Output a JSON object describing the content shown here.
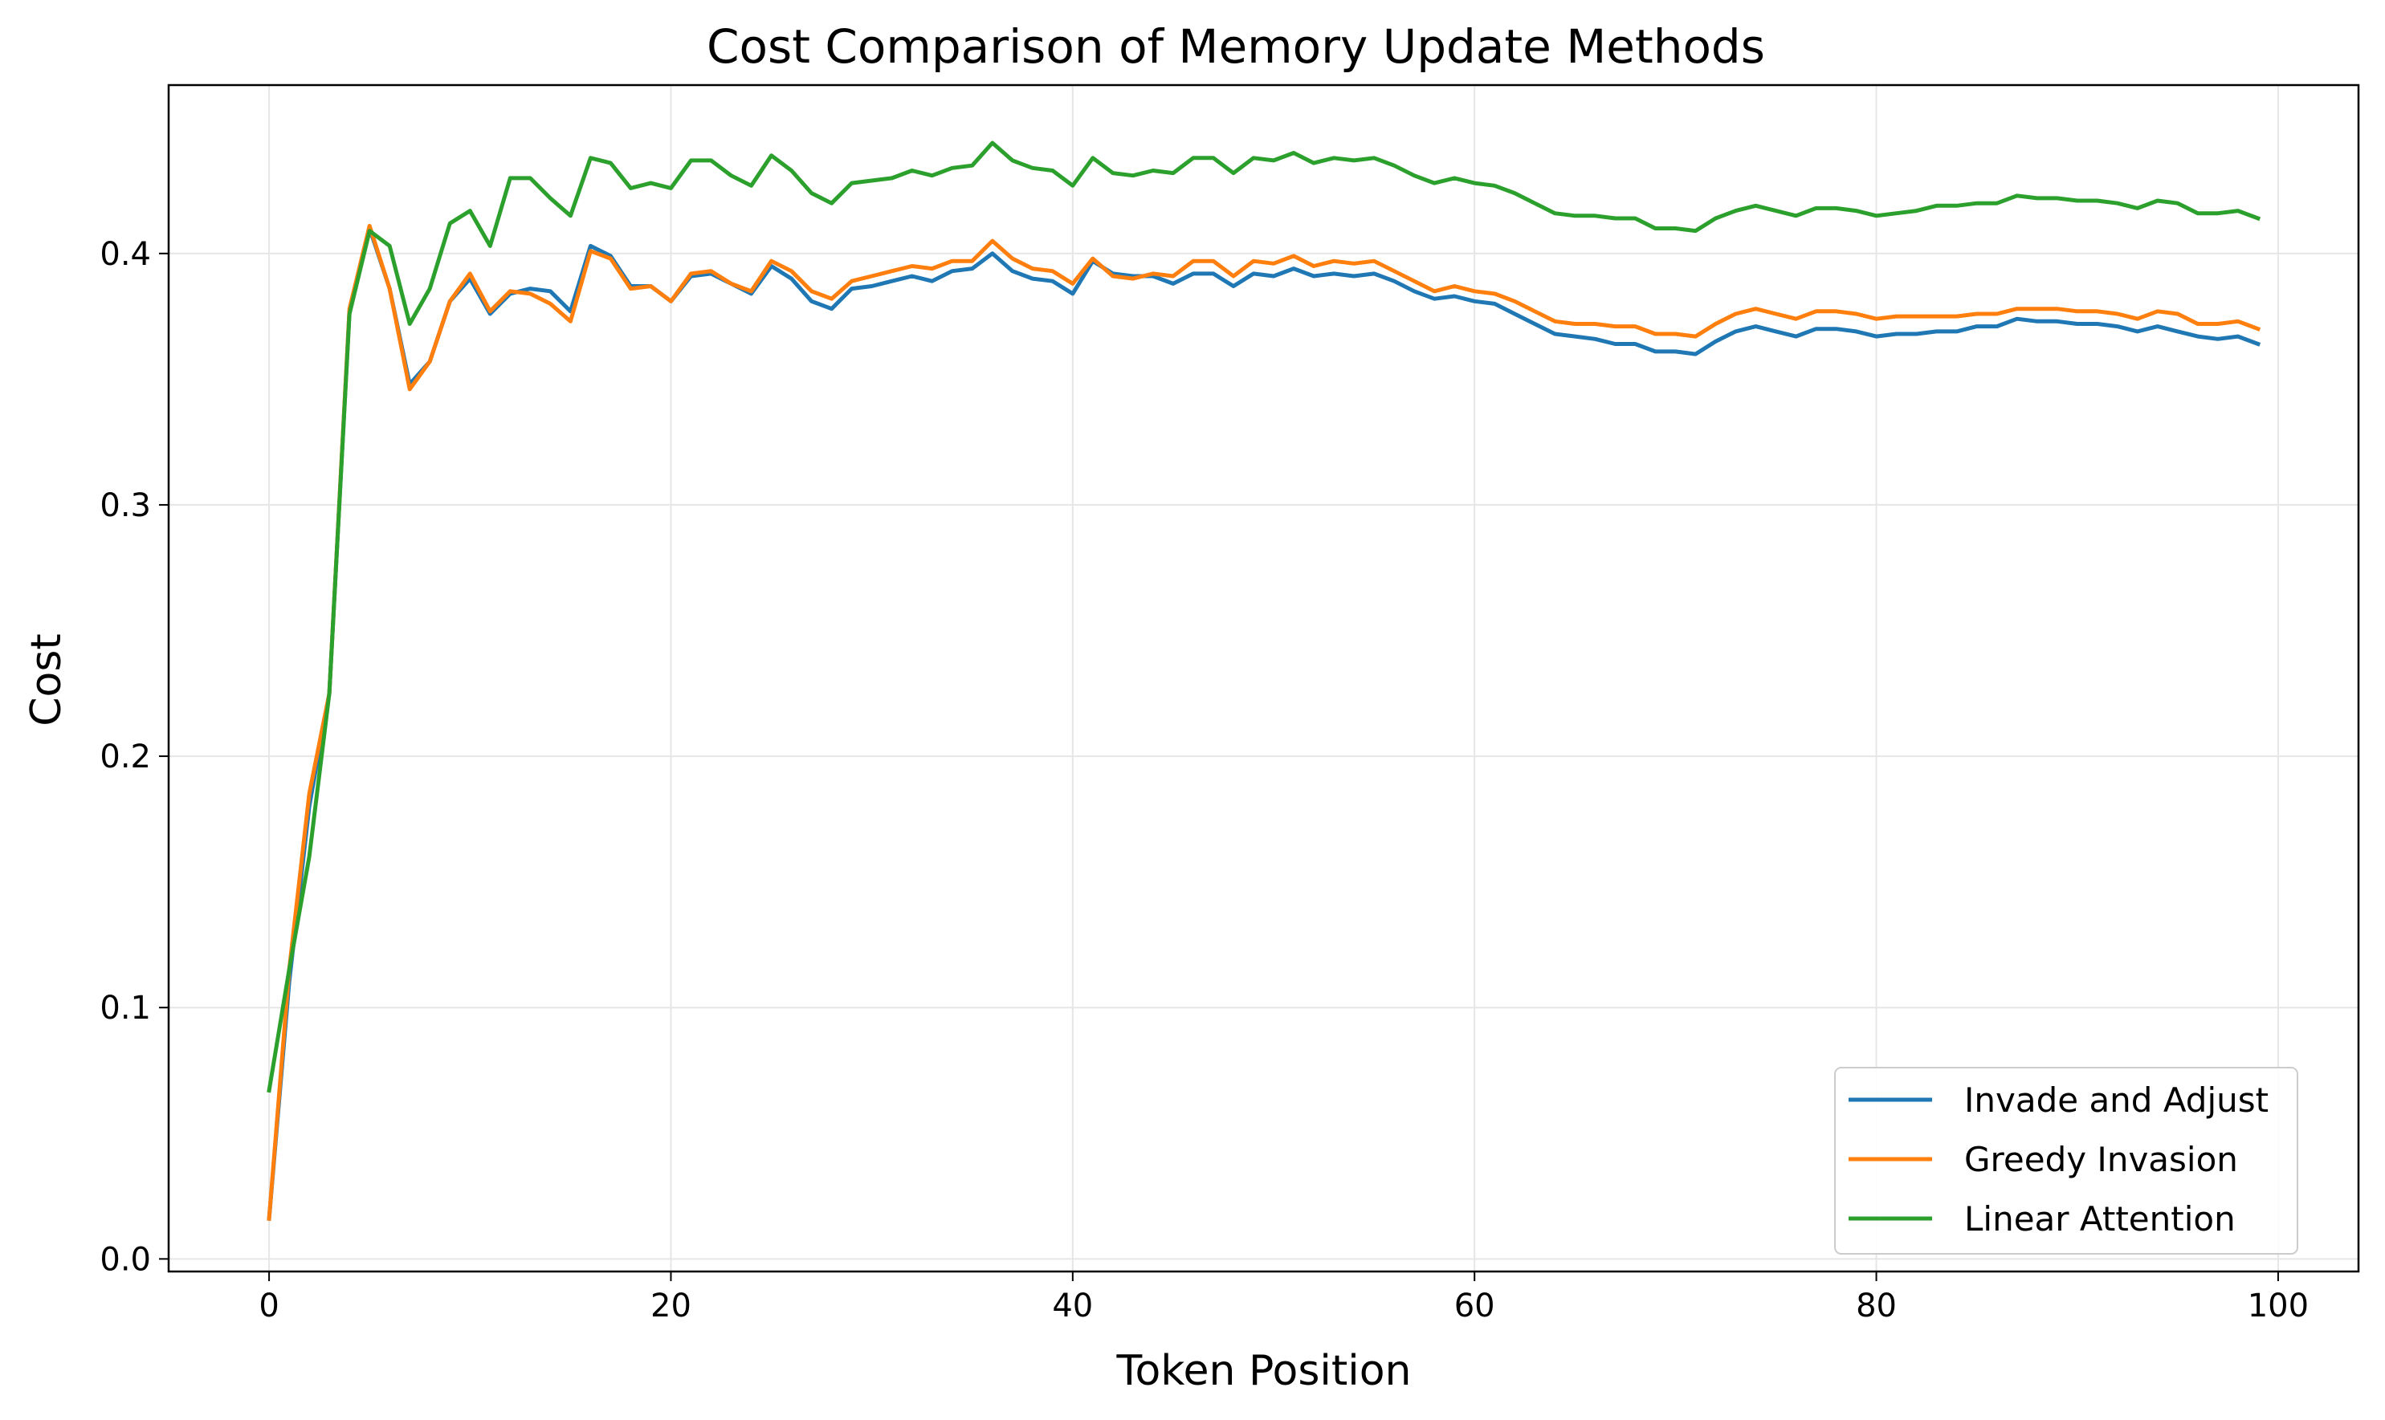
{
  "chart_data": {
    "type": "line",
    "title": "Cost Comparison of Memory Update Methods",
    "xlabel": "Token Position",
    "ylabel": "Cost",
    "xlim": [
      -5,
      104
    ],
    "ylim": [
      -0.005,
      0.467
    ],
    "xticks": [
      0,
      20,
      40,
      60,
      80,
      100
    ],
    "xtick_labels": [
      "0",
      "20",
      "40",
      "60",
      "80",
      "100"
    ],
    "yticks": [
      0.0,
      0.1,
      0.2,
      0.3,
      0.4
    ],
    "ytick_labels": [
      "0.0",
      "0.1",
      "0.2",
      "0.3",
      "0.4"
    ],
    "grid": true,
    "legend_position": "lower-right",
    "x": [
      0,
      1,
      2,
      3,
      4,
      5,
      6,
      7,
      8,
      9,
      10,
      11,
      12,
      13,
      14,
      15,
      16,
      17,
      18,
      19,
      20,
      21,
      22,
      23,
      24,
      25,
      26,
      27,
      28,
      29,
      30,
      31,
      32,
      33,
      34,
      35,
      36,
      37,
      38,
      39,
      40,
      41,
      42,
      43,
      44,
      45,
      46,
      47,
      48,
      49,
      50,
      51,
      52,
      53,
      54,
      55,
      56,
      57,
      58,
      59,
      60,
      61,
      62,
      63,
      64,
      65,
      66,
      67,
      68,
      69,
      70,
      71,
      72,
      73,
      74,
      75,
      76,
      77,
      78,
      79,
      80,
      81,
      82,
      83,
      84,
      85,
      86,
      87,
      88,
      89,
      90,
      91,
      92,
      93,
      94,
      95,
      96,
      97,
      98,
      99
    ],
    "series": [
      {
        "name": "Invade and Adjust",
        "color": "#1f77b4",
        "values": [
          0.016,
          0.11,
          0.18,
          0.225,
          0.377,
          0.41,
          0.386,
          0.348,
          0.357,
          0.381,
          0.39,
          0.376,
          0.384,
          0.386,
          0.385,
          0.377,
          0.403,
          0.399,
          0.387,
          0.387,
          0.381,
          0.391,
          0.392,
          0.388,
          0.384,
          0.395,
          0.39,
          0.381,
          0.378,
          0.386,
          0.387,
          0.389,
          0.391,
          0.389,
          0.393,
          0.394,
          0.4,
          0.393,
          0.39,
          0.389,
          0.384,
          0.397,
          0.392,
          0.391,
          0.391,
          0.388,
          0.392,
          0.392,
          0.387,
          0.392,
          0.391,
          0.394,
          0.391,
          0.392,
          0.391,
          0.392,
          0.389,
          0.385,
          0.382,
          0.383,
          0.381,
          0.38,
          0.376,
          0.372,
          0.368,
          0.367,
          0.366,
          0.364,
          0.364,
          0.361,
          0.361,
          0.36,
          0.365,
          0.369,
          0.371,
          0.369,
          0.367,
          0.37,
          0.37,
          0.369,
          0.367,
          0.368,
          0.368,
          0.369,
          0.369,
          0.371,
          0.371,
          0.374,
          0.373,
          0.373,
          0.372,
          0.372,
          0.371,
          0.369,
          0.371,
          0.369,
          0.367,
          0.366,
          0.367,
          0.364
        ]
      },
      {
        "name": "Greedy Invasion",
        "color": "#ff7f0e",
        "values": [
          0.016,
          0.115,
          0.185,
          0.225,
          0.378,
          0.411,
          0.386,
          0.346,
          0.357,
          0.381,
          0.392,
          0.377,
          0.385,
          0.384,
          0.38,
          0.373,
          0.401,
          0.398,
          0.386,
          0.387,
          0.381,
          0.392,
          0.393,
          0.388,
          0.385,
          0.397,
          0.393,
          0.385,
          0.382,
          0.389,
          0.391,
          0.393,
          0.395,
          0.394,
          0.397,
          0.397,
          0.405,
          0.398,
          0.394,
          0.393,
          0.388,
          0.398,
          0.391,
          0.39,
          0.392,
          0.391,
          0.397,
          0.397,
          0.391,
          0.397,
          0.396,
          0.399,
          0.395,
          0.397,
          0.396,
          0.397,
          0.393,
          0.389,
          0.385,
          0.387,
          0.385,
          0.384,
          0.381,
          0.377,
          0.373,
          0.372,
          0.372,
          0.371,
          0.371,
          0.368,
          0.368,
          0.367,
          0.372,
          0.376,
          0.378,
          0.376,
          0.374,
          0.377,
          0.377,
          0.376,
          0.374,
          0.375,
          0.375,
          0.375,
          0.375,
          0.376,
          0.376,
          0.378,
          0.378,
          0.378,
          0.377,
          0.377,
          0.376,
          0.374,
          0.377,
          0.376,
          0.372,
          0.372,
          0.373,
          0.37
        ]
      },
      {
        "name": "Linear Attention",
        "color": "#2ca02c",
        "values": [
          0.067,
          0.115,
          0.16,
          0.225,
          0.376,
          0.409,
          0.403,
          0.372,
          0.386,
          0.412,
          0.417,
          0.403,
          0.43,
          0.43,
          0.422,
          0.415,
          0.438,
          0.436,
          0.426,
          0.428,
          0.426,
          0.437,
          0.437,
          0.431,
          0.427,
          0.439,
          0.433,
          0.424,
          0.42,
          0.428,
          0.429,
          0.43,
          0.433,
          0.431,
          0.434,
          0.435,
          0.444,
          0.437,
          0.434,
          0.433,
          0.427,
          0.438,
          0.432,
          0.431,
          0.433,
          0.432,
          0.438,
          0.438,
          0.432,
          0.438,
          0.437,
          0.44,
          0.436,
          0.438,
          0.437,
          0.438,
          0.435,
          0.431,
          0.428,
          0.43,
          0.428,
          0.427,
          0.424,
          0.42,
          0.416,
          0.415,
          0.415,
          0.414,
          0.414,
          0.41,
          0.41,
          0.409,
          0.414,
          0.417,
          0.419,
          0.417,
          0.415,
          0.418,
          0.418,
          0.417,
          0.415,
          0.416,
          0.417,
          0.419,
          0.419,
          0.42,
          0.42,
          0.423,
          0.422,
          0.422,
          0.421,
          0.421,
          0.42,
          0.418,
          0.421,
          0.42,
          0.416,
          0.416,
          0.417,
          0.414
        ]
      }
    ]
  }
}
